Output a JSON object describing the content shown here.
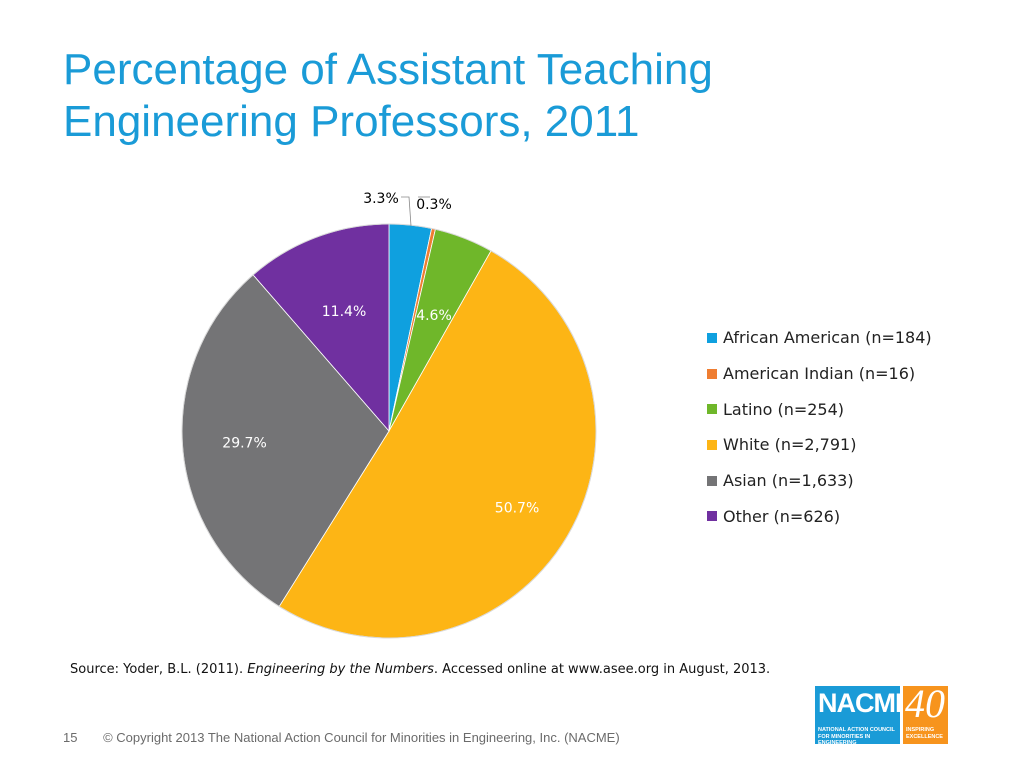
{
  "slide": {
    "title_line1": "Percentage of Assistant Teaching",
    "title_line2": "Engineering Professors, 2011",
    "source_prefix": "Source: Yoder, B.L. (2011). ",
    "source_title": "Engineering by the Numbers",
    "source_suffix": ". Accessed online at www.asee.org in August, 2013.",
    "page_number": "15",
    "copyright": "© Copyright 2013 The National Action Council for Minorities in Engineering, Inc. (NACME)"
  },
  "logo": {
    "name": "NACME",
    "subtitle": "NATIONAL ACTION COUNCIL FOR MINORITIES IN ENGINEERING",
    "number": "40",
    "tagline": "INSPIRING EXCELLENCE",
    "colors": {
      "blue": "#1a9bd7",
      "orange": "#f7941d"
    }
  },
  "chart_data": {
    "type": "pie",
    "title": "",
    "legend_position": "right",
    "categories": [
      "African American (n=184)",
      "American Indian (n=16)",
      "Latino (n=254)",
      "White (n=2,791)",
      "Asian (n=1,633)",
      "Other (n=626)"
    ],
    "values": [
      3.3,
      0.3,
      4.6,
      50.7,
      29.7,
      11.4
    ],
    "data_labels": [
      "3.3%",
      "0.3%",
      "4.6%",
      "50.7%",
      "29.7%",
      "11.4%"
    ],
    "colors": [
      "#0fa0df",
      "#ef7d31",
      "#6fb72a",
      "#fdb515",
      "#747476",
      "#7030a0"
    ],
    "label_colors": [
      "#000000",
      "#000000",
      "#ffffff",
      "#ffffff",
      "#ffffff",
      "#ffffff"
    ]
  }
}
